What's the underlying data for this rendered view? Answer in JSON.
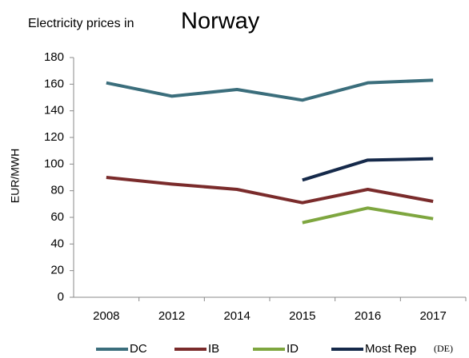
{
  "chart_data": {
    "type": "line",
    "title": "Electricity prices in",
    "subtitle": "Norway",
    "y_label": "EUR/MWH",
    "categories": [
      "2008",
      "2012",
      "2014",
      "2015",
      "2016",
      "2017"
    ],
    "series": [
      {
        "name": "DC",
        "color": "#3b6e7c",
        "values": [
          161,
          151,
          156,
          148,
          161,
          163
        ]
      },
      {
        "name": "IB",
        "color": "#7a2b2b",
        "values": [
          90,
          85,
          81,
          71,
          81,
          72
        ]
      },
      {
        "name": "ID",
        "color": "#7ea63f",
        "values": [
          null,
          null,
          null,
          56,
          67,
          59
        ]
      },
      {
        "name": "Most Rep",
        "color": "#15294a",
        "values": [
          null,
          null,
          null,
          88,
          103,
          104
        ]
      }
    ],
    "legend_note": "(DE)",
    "ylim": [
      0,
      180
    ],
    "yticks": [
      0,
      20,
      40,
      60,
      80,
      100,
      120,
      140,
      160,
      180
    ],
    "grid": false,
    "legend": "bottom"
  }
}
